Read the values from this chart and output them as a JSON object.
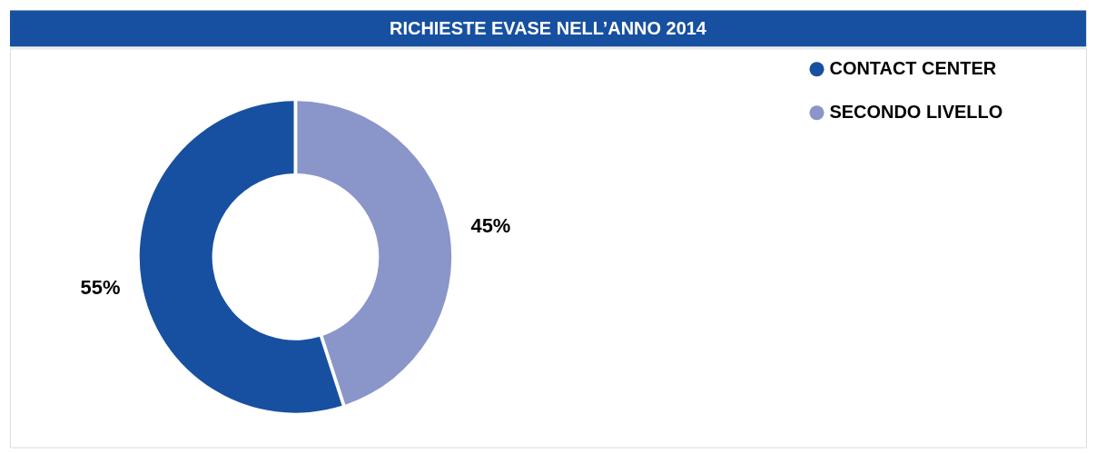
{
  "chart_data": {
    "type": "donut",
    "title": "RICHIESTE EVASE NELL’ANNO 2014",
    "categories": [
      "CONTACT CENTER",
      "SECONDO LIVELLO"
    ],
    "values": [
      55,
      45
    ],
    "colors": [
      "#1750a0",
      "#8a96c9"
    ],
    "value_labels": [
      "55%",
      "45%"
    ],
    "legend": "top right"
  }
}
